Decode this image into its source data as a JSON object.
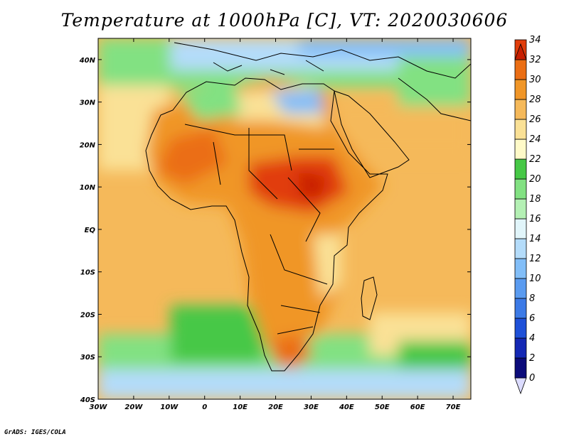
{
  "title": "Temperature at 1000hPa [C], VT: 2020030606",
  "credit": "GrADS: IGES/COLA",
  "map": {
    "projection": "lat-lon",
    "lon_range": [
      -30,
      75
    ],
    "lat_range": [
      -40,
      45
    ],
    "lon_ticks": [
      "30W",
      "20W",
      "10W",
      "0",
      "10E",
      "20E",
      "30E",
      "40E",
      "50E",
      "60E",
      "70E"
    ],
    "lon_values": [
      -30,
      -20,
      -10,
      0,
      10,
      20,
      30,
      40,
      50,
      60,
      70
    ],
    "lat_ticks": [
      "40S",
      "30S",
      "20S",
      "10S",
      "EQ",
      "10N",
      "20N",
      "30N",
      "40N"
    ],
    "lat_values": [
      -40,
      -30,
      -20,
      -10,
      0,
      10,
      20,
      30,
      40
    ]
  },
  "colorbar": {
    "levels": [
      "0",
      "2",
      "4",
      "6",
      "8",
      "10",
      "12",
      "14",
      "16",
      "18",
      "20",
      "22",
      "24",
      "26",
      "28",
      "30",
      "32",
      "34"
    ],
    "colors": [
      "#0b0b7a",
      "#1428b4",
      "#1e50d8",
      "#3c7ae6",
      "#5a9bf0",
      "#82bef8",
      "#b4dcfa",
      "#e1f5fa",
      "#b4f0b4",
      "#82e182",
      "#46c846",
      "#fffac8",
      "#fae196",
      "#f5b95a",
      "#f09628",
      "#eb6e14",
      "#e13c0a",
      "#c81e00"
    ]
  }
}
